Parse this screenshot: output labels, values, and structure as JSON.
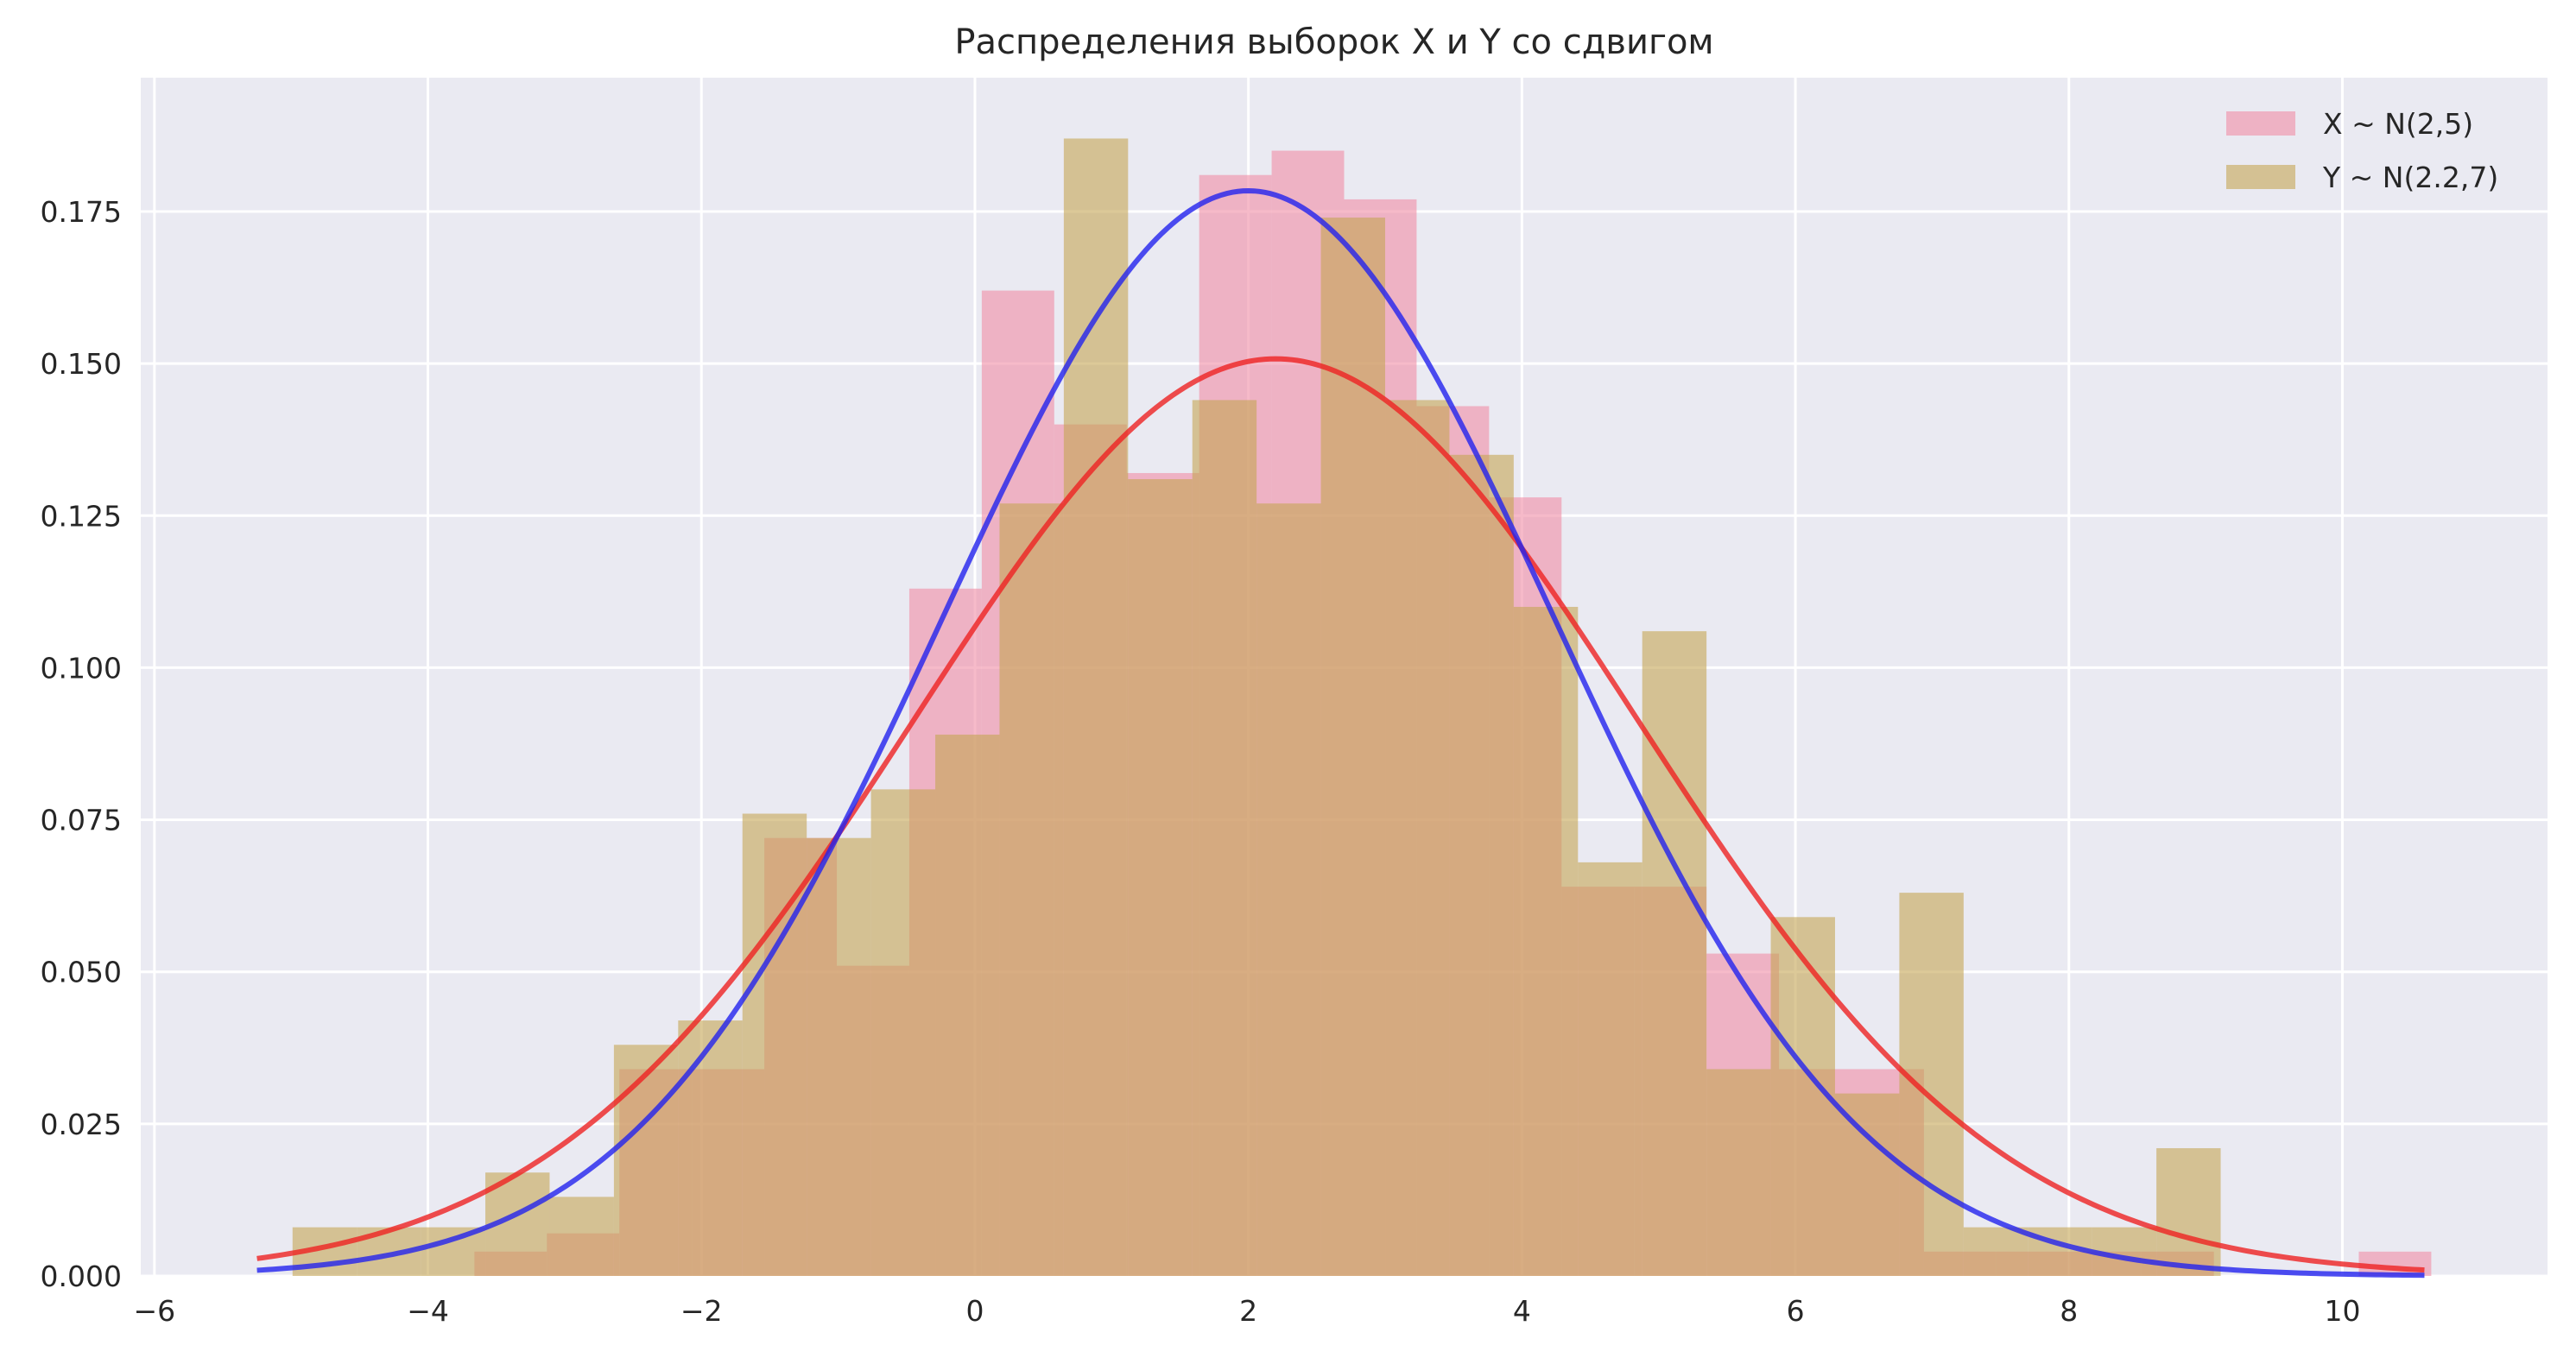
{
  "chart_data": {
    "type": "histogram",
    "title": "Распределения выборок X и Y со сдвигом",
    "xlabel": "",
    "ylabel": "",
    "xlim": [
      -6.1,
      11.5
    ],
    "ylim": [
      0,
      0.197
    ],
    "grid": true,
    "legend_position": "top-right",
    "x_ticks": [
      -6,
      -4,
      -2,
      0,
      2,
      4,
      6,
      8,
      10
    ],
    "x_tick_labels": [
      "−6",
      "−4",
      "−2",
      "0",
      "2",
      "4",
      "6",
      "8",
      "10"
    ],
    "y_ticks": [
      0,
      0.025,
      0.05,
      0.075,
      0.1,
      0.125,
      0.15,
      0.175
    ],
    "y_tick_labels": [
      "0.000",
      "0.025",
      "0.050",
      "0.075",
      "0.100",
      "0.125",
      "0.150",
      "0.175"
    ],
    "colors": {
      "background": "#eaeaf2",
      "grid": "#ffffff",
      "x_hist": "#f08ca5",
      "y_hist": "#c4a553",
      "x_hist_alpha": 0.6,
      "y_hist_alpha": 0.6,
      "curve_red": "#ee2222",
      "curve_blue": "#2222ee"
    },
    "histograms": [
      {
        "name": "X ~ N(2,5)",
        "color": "#f08ca5",
        "bins": [
          [
            -4.19,
            0.0
          ],
          [
            -3.66,
            0.004
          ],
          [
            -3.13,
            0.007
          ],
          [
            -2.6,
            0.034
          ],
          [
            -2.07,
            0.034
          ],
          [
            -1.54,
            0.072
          ],
          [
            -1.01,
            0.051
          ],
          [
            -0.48,
            0.113
          ],
          [
            0.05,
            0.162
          ],
          [
            0.58,
            0.14
          ],
          [
            1.11,
            0.132
          ],
          [
            1.64,
            0.181
          ],
          [
            2.17,
            0.185
          ],
          [
            2.7,
            0.177
          ],
          [
            3.23,
            0.143
          ],
          [
            3.76,
            0.128
          ],
          [
            4.29,
            0.064
          ],
          [
            4.82,
            0.064
          ],
          [
            5.35,
            0.053
          ],
          [
            5.88,
            0.034
          ],
          [
            6.41,
            0.034
          ],
          [
            6.94,
            0.004
          ],
          [
            7.47,
            0.004
          ],
          [
            8.0,
            0.004
          ],
          [
            8.53,
            0.004
          ],
          [
            9.06,
            0.0
          ],
          [
            9.59,
            0.0
          ],
          [
            10.12,
            0.004
          ]
        ],
        "bin_width": 0.53
      },
      {
        "name": "Y ~ N(2.2,7)",
        "color": "#c4a553",
        "bins": [
          [
            -4.99,
            0.008
          ],
          [
            -4.52,
            0.008
          ],
          [
            -4.05,
            0.008
          ],
          [
            -3.58,
            0.017
          ],
          [
            -3.11,
            0.013
          ],
          [
            -2.64,
            0.038
          ],
          [
            -2.17,
            0.042
          ],
          [
            -1.7,
            0.076
          ],
          [
            -1.23,
            0.072
          ],
          [
            -0.76,
            0.08
          ],
          [
            -0.29,
            0.089
          ],
          [
            0.18,
            0.127
          ],
          [
            0.65,
            0.187
          ],
          [
            1.12,
            0.131
          ],
          [
            1.59,
            0.144
          ],
          [
            2.06,
            0.127
          ],
          [
            2.53,
            0.174
          ],
          [
            3.0,
            0.144
          ],
          [
            3.47,
            0.135
          ],
          [
            3.94,
            0.11
          ],
          [
            4.41,
            0.068
          ],
          [
            4.88,
            0.106
          ],
          [
            5.35,
            0.034
          ],
          [
            5.82,
            0.059
          ],
          [
            6.29,
            0.03
          ],
          [
            6.76,
            0.063
          ],
          [
            7.23,
            0.008
          ],
          [
            7.7,
            0.008
          ],
          [
            8.17,
            0.008
          ],
          [
            8.64,
            0.021
          ],
          [
            9.11,
            0.0
          ]
        ],
        "bin_width": 0.47
      }
    ],
    "curves": [
      {
        "color": "#ee2222",
        "mean": 2.2,
        "sd": 2.6458,
        "x_range": [
          -5.25,
          10.6
        ]
      },
      {
        "color": "#2222ee",
        "mean": 2.0,
        "sd": 2.2361,
        "x_range": [
          -5.25,
          10.6
        ]
      }
    ],
    "legend": [
      {
        "label": "X ~ N(2,5)",
        "color": "#f08ca5"
      },
      {
        "label": "Y ~ N(2.2,7)",
        "color": "#c4a553"
      }
    ]
  }
}
